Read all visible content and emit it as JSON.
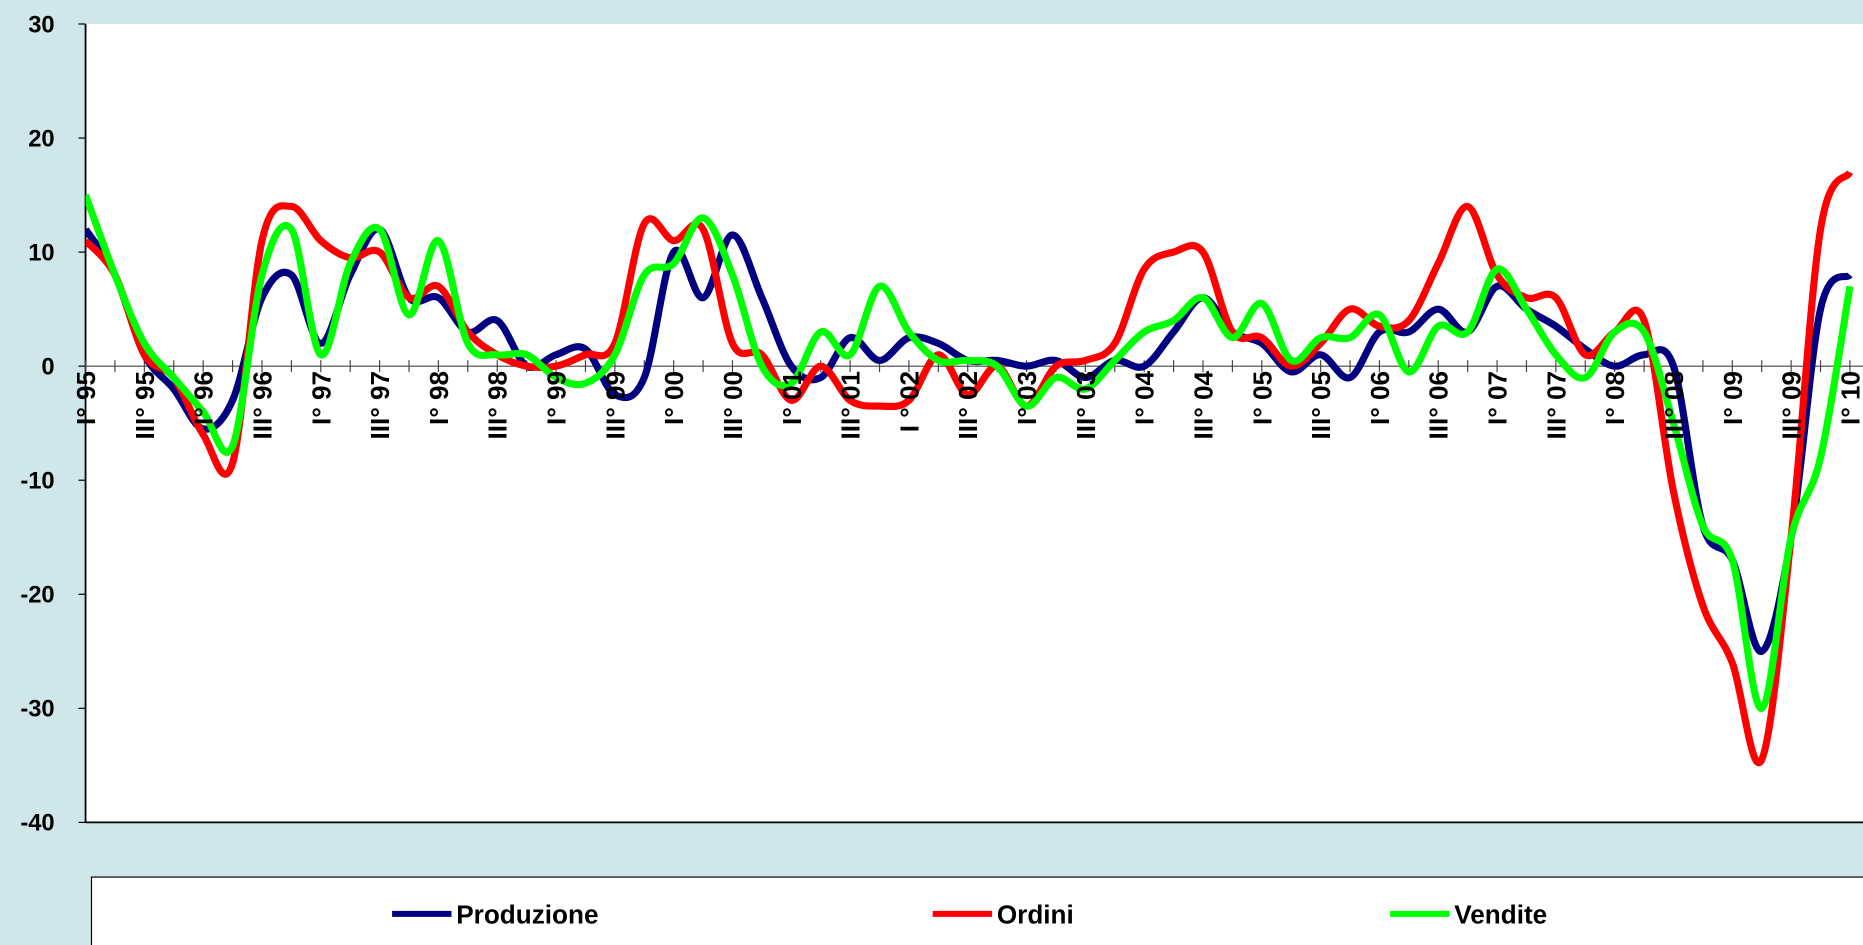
{
  "chart_data": {
    "type": "line",
    "categories": [
      "I° 95",
      null,
      "III° 95",
      null,
      "I° 96",
      null,
      "III° 96",
      null,
      "I° 97",
      null,
      "III° 97",
      null,
      "I° 98",
      null,
      "III° 98",
      null,
      "I° 99",
      null,
      "III° 99",
      null,
      "I° 00",
      null,
      "III° 00",
      null,
      "I° 01",
      null,
      "III° 01",
      null,
      "I ° 02",
      null,
      "III° 02",
      null,
      "I° 03",
      null,
      "III° 03",
      null,
      "I° 04",
      null,
      "III° 04",
      null,
      "I° 05",
      null,
      "III° 05",
      null,
      "I° 06",
      null,
      "III° 06",
      null,
      "I° 07",
      null,
      "III° 07",
      null,
      "I° 08",
      null,
      "III° 08",
      null,
      "I° 09",
      null,
      "III° 09",
      null,
      "I° 10"
    ],
    "series": [
      {
        "name": "Produzione",
        "color": "#000080",
        "values": [
          12,
          8,
          1,
          -2,
          -5.5,
          -3,
          6,
          8,
          2,
          8,
          12,
          6,
          6,
          3,
          4,
          0,
          1,
          1.5,
          -2.5,
          -1,
          10,
          6,
          11.5,
          6,
          0,
          -1,
          2.5,
          0.5,
          2.5,
          2,
          0.5,
          0.5,
          0,
          0.5,
          -1,
          0.5,
          0,
          3,
          6,
          3,
          2,
          -0.5,
          1,
          -1,
          3,
          3,
          5,
          3,
          7,
          5,
          3.5,
          1.5,
          0,
          1,
          0,
          -14,
          -17,
          -25,
          -15,
          5,
          8
        ]
      },
      {
        "name": "Ordini",
        "color": "#ff0000",
        "values": [
          11,
          8,
          1,
          -1,
          -6,
          -8.5,
          11,
          14,
          11,
          9.5,
          10,
          6,
          7,
          3,
          1,
          0,
          0,
          1,
          2,
          12.5,
          11,
          12,
          2,
          1,
          -3,
          0,
          -3,
          -3.5,
          -3,
          1,
          -2.5,
          0,
          -3.5,
          0,
          0.5,
          2,
          8.5,
          10,
          10,
          3,
          2.5,
          0,
          2,
          5,
          3.5,
          4,
          9,
          14,
          8,
          6,
          6,
          1,
          3,
          4,
          -11,
          -21,
          -26,
          -34.5,
          -15,
          12,
          17
        ]
      },
      {
        "name": "Vendite",
        "color": "#00ff00",
        "values": [
          15,
          8,
          2,
          -1,
          -4,
          -7,
          8,
          12,
          1,
          9,
          12,
          4.5,
          11,
          2,
          1,
          1,
          -1,
          -1.5,
          1,
          8,
          9,
          13,
          8,
          0,
          -1.5,
          3,
          1,
          7,
          3,
          0.5,
          0.5,
          0,
          -3.5,
          -1,
          -2,
          0.5,
          3,
          4,
          6,
          2.5,
          5.5,
          0.5,
          2.5,
          2.5,
          4.5,
          -0.5,
          3.5,
          3,
          8.5,
          5,
          1,
          -1,
          3,
          3,
          -5,
          -14,
          -17,
          -30,
          -15,
          -8,
          7
        ]
      }
    ],
    "ylim": [
      -40,
      30
    ],
    "yticks": [
      -40,
      -30,
      -20,
      -10,
      0,
      10,
      20,
      30
    ]
  }
}
